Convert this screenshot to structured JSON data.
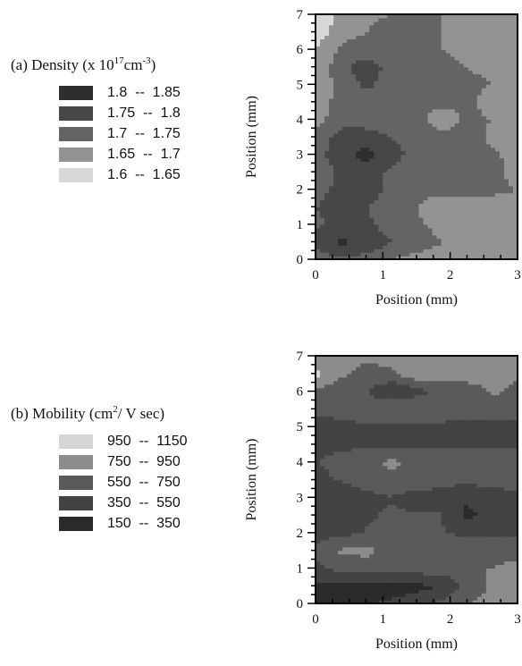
{
  "chart_data": [
    {
      "type": "heatmap",
      "panel_label": "(a)",
      "legend": {
        "title_prefix": "(a) Density (x 10",
        "title_sup1": "17",
        "title_mid": "cm",
        "title_sup2": "-3",
        "title_suffix": ")",
        "entries": [
          {
            "label": "1.8  --  1.85",
            "color": "#2e2e2e"
          },
          {
            "label": "1.75  --  1.8",
            "color": "#474747"
          },
          {
            "label": "1.7  --  1.75",
            "color": "#646464"
          },
          {
            "label": "1.65  --  1.7",
            "color": "#939393"
          },
          {
            "label": "1.6  --  1.65",
            "color": "#d8d8d8"
          }
        ]
      },
      "xlabel": "Position (mm)",
      "ylabel": "Position (mm)",
      "xlim": [
        0,
        3
      ],
      "ylim": [
        0,
        7
      ],
      "x_ticks": [
        "0",
        "1",
        "2",
        "3"
      ],
      "y_ticks": [
        "0",
        "1",
        "2",
        "3",
        "4",
        "5",
        "6",
        "7"
      ],
      "x": [
        0.0,
        0.375,
        0.75,
        1.125,
        1.5,
        1.875,
        2.25,
        2.625,
        3.0
      ],
      "y": [
        0.0,
        0.5,
        1.0,
        1.5,
        2.0,
        2.5,
        3.0,
        3.5,
        4.0,
        4.5,
        5.0,
        5.5,
        6.0,
        6.5,
        7.0
      ],
      "z": [
        [
          1.72,
          1.74,
          1.73,
          1.7,
          1.68,
          1.67,
          1.66,
          1.66,
          1.66
        ],
        [
          1.77,
          1.81,
          1.79,
          1.75,
          1.73,
          1.7,
          1.69,
          1.68,
          1.67
        ],
        [
          1.74,
          1.77,
          1.76,
          1.73,
          1.71,
          1.68,
          1.67,
          1.68,
          1.68
        ],
        [
          1.75,
          1.76,
          1.75,
          1.73,
          1.7,
          1.66,
          1.66,
          1.68,
          1.68
        ],
        [
          1.74,
          1.76,
          1.77,
          1.74,
          1.72,
          1.72,
          1.72,
          1.71,
          1.7
        ],
        [
          1.71,
          1.76,
          1.77,
          1.74,
          1.72,
          1.72,
          1.72,
          1.72,
          1.68
        ],
        [
          1.73,
          1.78,
          1.82,
          1.77,
          1.73,
          1.73,
          1.72,
          1.71,
          1.68
        ],
        [
          1.72,
          1.77,
          1.78,
          1.75,
          1.73,
          1.73,
          1.72,
          1.69,
          1.66
        ],
        [
          1.68,
          1.73,
          1.72,
          1.72,
          1.72,
          1.66,
          1.71,
          1.7,
          1.68
        ],
        [
          1.67,
          1.72,
          1.72,
          1.72,
          1.72,
          1.72,
          1.71,
          1.68,
          1.66
        ],
        [
          1.66,
          1.72,
          1.76,
          1.73,
          1.72,
          1.72,
          1.71,
          1.7,
          1.69
        ],
        [
          1.66,
          1.73,
          1.78,
          1.73,
          1.72,
          1.71,
          1.7,
          1.69,
          1.68
        ],
        [
          1.65,
          1.71,
          1.72,
          1.71,
          1.7,
          1.7,
          1.69,
          1.69,
          1.68
        ],
        [
          1.62,
          1.68,
          1.7,
          1.72,
          1.71,
          1.7,
          1.7,
          1.69,
          1.69
        ],
        [
          1.61,
          1.66,
          1.69,
          1.7,
          1.7,
          1.7,
          1.69,
          1.69,
          1.69
        ]
      ]
    },
    {
      "type": "heatmap",
      "panel_label": "(b)",
      "legend": {
        "title_prefix": "(b) Mobility (cm",
        "title_sup1": "2",
        "title_mid": "/ V sec)",
        "title_sup2": "",
        "title_suffix": "",
        "entries": [
          {
            "label": "950  --  1150",
            "color": "#d6d6d6"
          },
          {
            "label": "750  --  950",
            "color": "#8c8c8c"
          },
          {
            "label": "550  --  750",
            "color": "#5a5a5a"
          },
          {
            "label": "350  --  550",
            "color": "#434343"
          },
          {
            "label": "150  --  350",
            "color": "#2b2b2b"
          }
        ]
      },
      "xlabel": "Position (mm)",
      "ylabel": "Position (mm)",
      "xlim": [
        0,
        3
      ],
      "ylim": [
        0,
        7
      ],
      "x_ticks": [
        "0",
        "1",
        "2",
        "3"
      ],
      "y_ticks": [
        "0",
        "1",
        "2",
        "3",
        "4",
        "5",
        "6",
        "7"
      ],
      "x": [
        0.0,
        0.375,
        0.75,
        1.125,
        1.5,
        1.875,
        2.25,
        2.625,
        3.0
      ],
      "y": [
        0.0,
        0.5,
        1.0,
        1.5,
        2.0,
        2.5,
        3.0,
        3.5,
        4.0,
        4.5,
        5.0,
        5.5,
        6.0,
        6.5,
        7.0
      ],
      "z": [
        [
          300,
          320,
          340,
          380,
          450,
          600,
          750,
          850,
          900
        ],
        [
          320,
          300,
          280,
          260,
          300,
          350,
          600,
          780,
          850
        ],
        [
          500,
          620,
          650,
          650,
          650,
          650,
          700,
          760,
          800
        ],
        [
          600,
          780,
          800,
          700,
          650,
          700,
          700,
          650,
          700
        ],
        [
          450,
          500,
          560,
          600,
          560,
          560,
          500,
          520,
          520
        ],
        [
          400,
          380,
          520,
          580,
          560,
          560,
          300,
          430,
          520
        ],
        [
          420,
          440,
          500,
          540,
          480,
          480,
          380,
          460,
          500
        ],
        [
          500,
          560,
          620,
          680,
          650,
          600,
          600,
          620,
          620
        ],
        [
          550,
          600,
          650,
          800,
          700,
          650,
          640,
          650,
          640
        ],
        [
          500,
          520,
          520,
          520,
          520,
          520,
          520,
          520,
          520
        ],
        [
          450,
          480,
          500,
          500,
          480,
          480,
          460,
          460,
          450
        ],
        [
          600,
          640,
          720,
          760,
          720,
          720,
          700,
          680,
          680
        ],
        [
          700,
          620,
          560,
          330,
          480,
          600,
          600,
          780,
          720
        ],
        [
          1000,
          780,
          700,
          720,
          900,
          820,
          900,
          800,
          760
        ],
        [
          820,
          800,
          780,
          800,
          820,
          800,
          820,
          800,
          780
        ]
      ]
    }
  ]
}
